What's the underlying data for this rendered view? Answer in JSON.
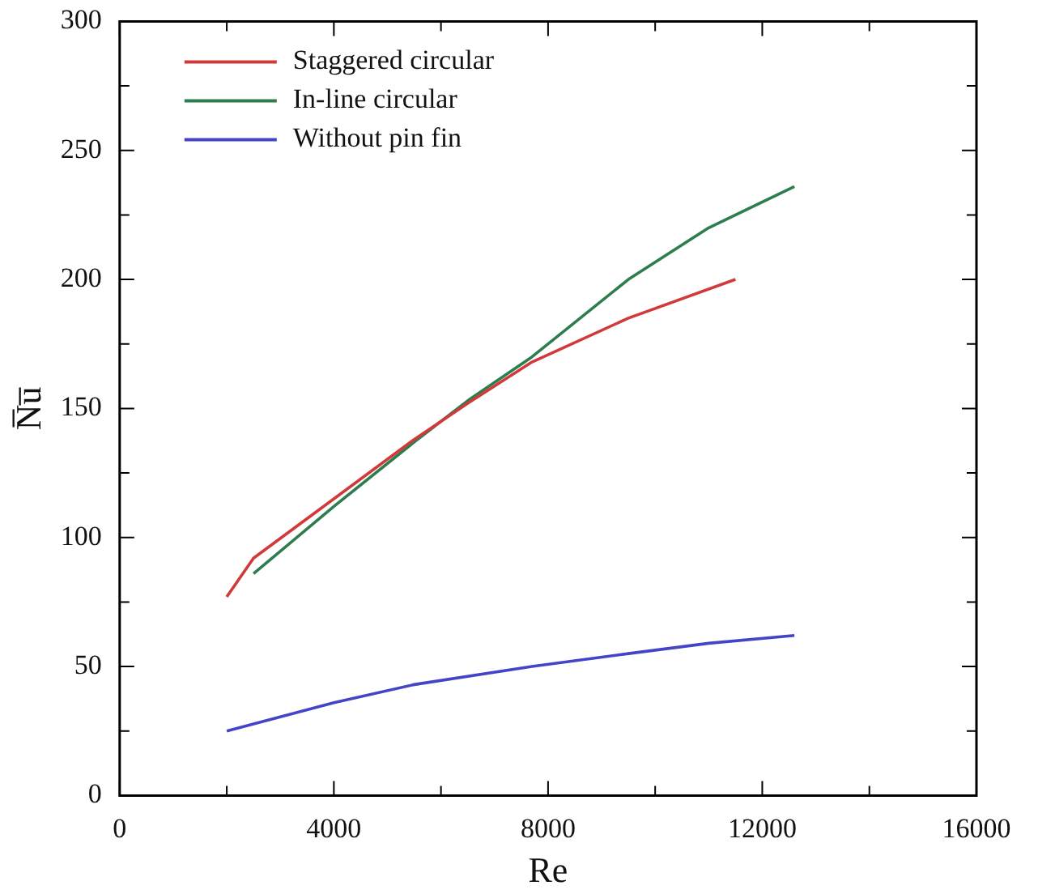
{
  "chart_data": {
    "type": "line",
    "xlabel": "Re",
    "ylabel": "N̅u̅",
    "xlim": [
      0,
      16000
    ],
    "xticks": [
      0,
      {
        "value": 2000,
        "label": null
      },
      4000,
      {
        "value": 6000,
        "label": null
      },
      8000,
      {
        "value": 10000,
        "label": null
      },
      12000,
      {
        "value": 14000,
        "label": null
      },
      16000
    ],
    "ylim": [
      0,
      300
    ],
    "yticks": [
      0,
      {
        "value": 25,
        "label": null
      },
      50,
      {
        "value": 75,
        "label": null
      },
      100,
      {
        "value": 125,
        "label": null
      },
      150,
      {
        "value": 175,
        "label": null
      },
      200,
      {
        "value": 225,
        "label": null
      },
      250,
      {
        "value": 275,
        "label": null
      },
      300
    ],
    "grid": false,
    "legend": "top left",
    "marker": "none",
    "line_style": "solid",
    "series": [
      {
        "name": "Staggered circular",
        "color": "#d03a3a",
        "x": [
          2000,
          2500,
          4000,
          5500,
          6500,
          7700,
          9500,
          11500
        ],
        "values": [
          77,
          92,
          115,
          138,
          152,
          168,
          185,
          200
        ]
      },
      {
        "name": "In-line circular",
        "color": "#2e7d4f",
        "x": [
          2500,
          4000,
          5500,
          6500,
          7700,
          9500,
          11000,
          12600
        ],
        "values": [
          86,
          112,
          137,
          153,
          170,
          200,
          220,
          236
        ]
      },
      {
        "name": "Without pin fin",
        "color": "#4444c8",
        "x": [
          2000,
          4000,
          5500,
          7700,
          9500,
          11000,
          12600
        ],
        "values": [
          25,
          36,
          43,
          50,
          55,
          59,
          62
        ]
      }
    ]
  }
}
